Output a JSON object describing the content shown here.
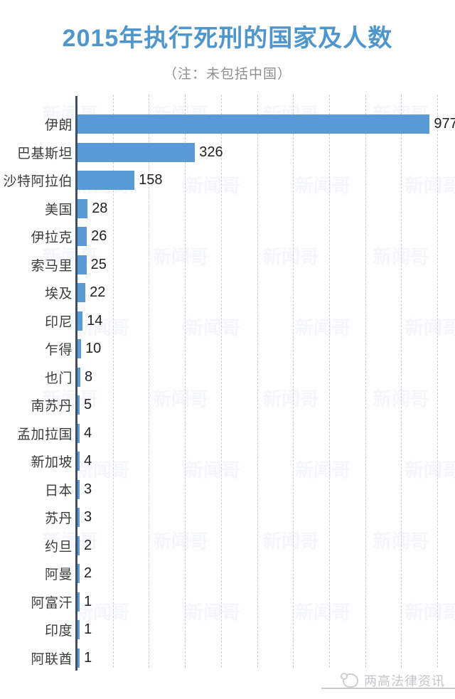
{
  "chart_data": {
    "type": "bar",
    "orientation": "horizontal",
    "title": "2015年执行死刑的国家及人数",
    "subtitle": "（注：未包括中国）",
    "categories": [
      "伊朗",
      "巴基斯坦",
      "沙特阿拉伯",
      "美国",
      "伊拉克",
      "索马里",
      "埃及",
      "印尼",
      "乍得",
      "也门",
      "南苏丹",
      "孟加拉国",
      "新加坡",
      "日本",
      "苏丹",
      "约旦",
      "阿曼",
      "阿富汗",
      "印度",
      "阿联酋"
    ],
    "values": [
      977,
      326,
      158,
      28,
      26,
      25,
      22,
      14,
      10,
      8,
      5,
      4,
      4,
      3,
      3,
      2,
      2,
      1,
      1,
      1
    ],
    "xlabel": "",
    "ylabel": "",
    "xlim": [
      0,
      1000
    ],
    "gridline_interval": 100,
    "grid": "vertical-dashed",
    "legend": "none",
    "bar_color": "#5b9bd5",
    "axis_color": "#3d5166",
    "data_labels": true
  },
  "watermark": {
    "text": "新闻哥"
  },
  "footer": {
    "publisher": "两高法律资讯"
  }
}
